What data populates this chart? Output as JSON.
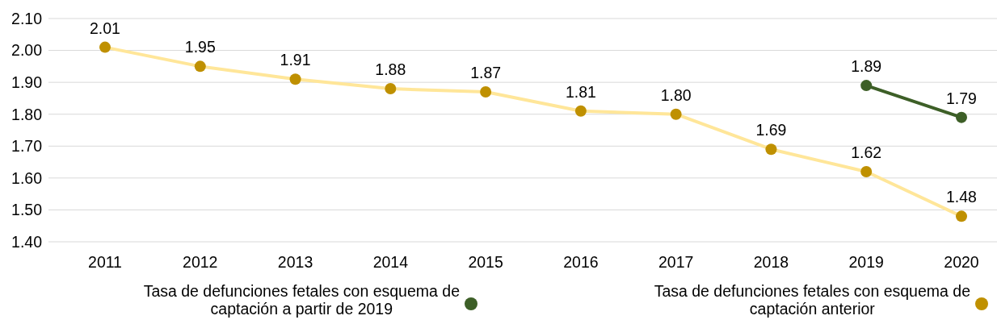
{
  "chart_data": {
    "type": "line",
    "categories": [
      "2011",
      "2012",
      "2013",
      "2014",
      "2015",
      "2016",
      "2017",
      "2018",
      "2019",
      "2020"
    ],
    "series": [
      {
        "name": "Tasa de defunciones fetales con esquema de captación a partir de 2019",
        "color": "#3d5f27",
        "values": [
          null,
          null,
          null,
          null,
          null,
          null,
          null,
          null,
          1.89,
          1.79
        ],
        "value_labels": [
          null,
          null,
          null,
          null,
          null,
          null,
          null,
          null,
          "1.89",
          "1.79"
        ]
      },
      {
        "name": "Tasa de defunciones fetales con esquema de captación anterior",
        "color": "#ffe699",
        "colors": [
          "#bf9000",
          "#bf9000",
          "#bf9000",
          "#bf9000",
          "#bf9000",
          "#bf9000",
          "#bf9000",
          "#bf9000",
          "#bf9000",
          "#bf9000"
        ],
        "values": [
          2.01,
          1.95,
          1.91,
          1.88,
          1.87,
          1.81,
          1.8,
          1.69,
          1.62,
          1.48
        ],
        "value_labels": [
          "2.01",
          "1.95",
          "1.91",
          "1.88",
          "1.87",
          "1.81",
          "1.80",
          "1.69",
          "1.62",
          "1.48"
        ]
      }
    ],
    "ylim": [
      1.4,
      2.1
    ],
    "yticks": [
      "1.40",
      "1.50",
      "1.60",
      "1.70",
      "1.80",
      "1.90",
      "2.00",
      "2.10"
    ],
    "grid": "y",
    "legend": "bottom",
    "marker": "circle",
    "line_style": "solid"
  }
}
